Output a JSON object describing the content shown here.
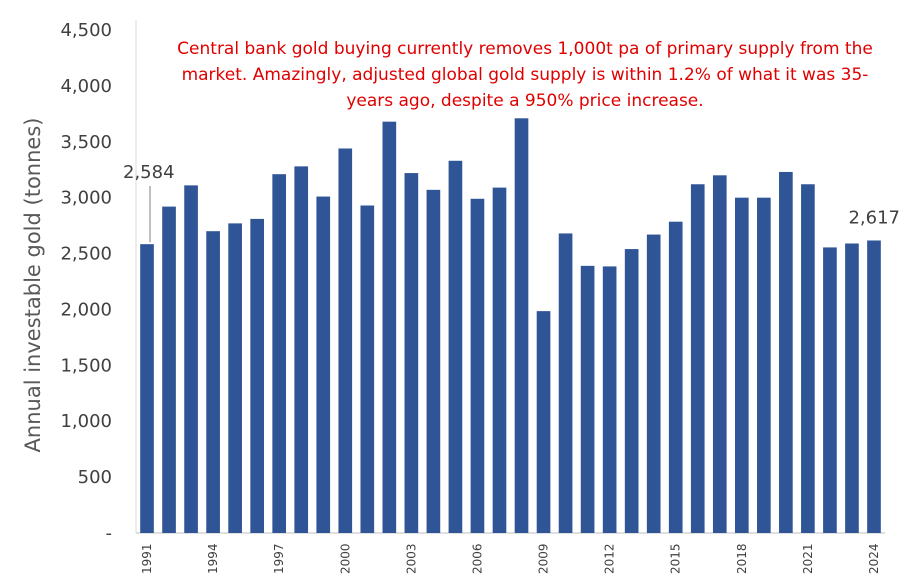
{
  "chart_data": {
    "type": "bar",
    "title": "",
    "xlabel": "",
    "ylabel": "Annual investable gold (tonnes)",
    "ylim": [
      0,
      4500
    ],
    "yticks": [
      0,
      500,
      1000,
      1500,
      2000,
      2500,
      3000,
      3500,
      4000,
      4500
    ],
    "ytick_labels": [
      "-",
      "500",
      "1,000",
      "1,500",
      "2,000",
      "2,500",
      "3,000",
      "3,500",
      "4,000",
      "4,500"
    ],
    "categories": [
      "1991",
      "1992",
      "1993",
      "1994",
      "1995",
      "1996",
      "1997",
      "1998",
      "1999",
      "2000",
      "2001",
      "2002",
      "2003",
      "2004",
      "2005",
      "2006",
      "2007",
      "2008",
      "2009",
      "2010",
      "2011",
      "2012",
      "2013",
      "2014",
      "2015",
      "2016",
      "2017",
      "2018",
      "2019",
      "2020",
      "2021",
      "2022",
      "2023",
      "2024"
    ],
    "tick_labels": [
      "1991",
      "1994",
      "1997",
      "2000",
      "2003",
      "2006",
      "2009",
      "2012",
      "2015",
      "2018",
      "2021",
      "2024"
    ],
    "values": [
      2584,
      2920,
      3110,
      2700,
      2770,
      2810,
      3210,
      3280,
      3010,
      3440,
      2930,
      3680,
      3220,
      3070,
      3330,
      2990,
      3090,
      3710,
      1985,
      2680,
      2390,
      2385,
      2540,
      2670,
      2785,
      3120,
      3200,
      3000,
      3000,
      3230,
      3120,
      2555,
      2590,
      2617
    ],
    "bar_color": "#2f5597",
    "data_labels": [
      {
        "category": "1991",
        "text": "2,584"
      },
      {
        "category": "2024",
        "text": "2,617"
      }
    ],
    "annotation": {
      "lines": [
        "Central bank gold buying currently removes 1,000t pa of primary supply from the",
        "market.  Amazingly, adjusted global gold supply is within 1.2% of what it was 35-",
        "years ago, despite a 950% price increase."
      ],
      "color": "#e00000"
    }
  }
}
